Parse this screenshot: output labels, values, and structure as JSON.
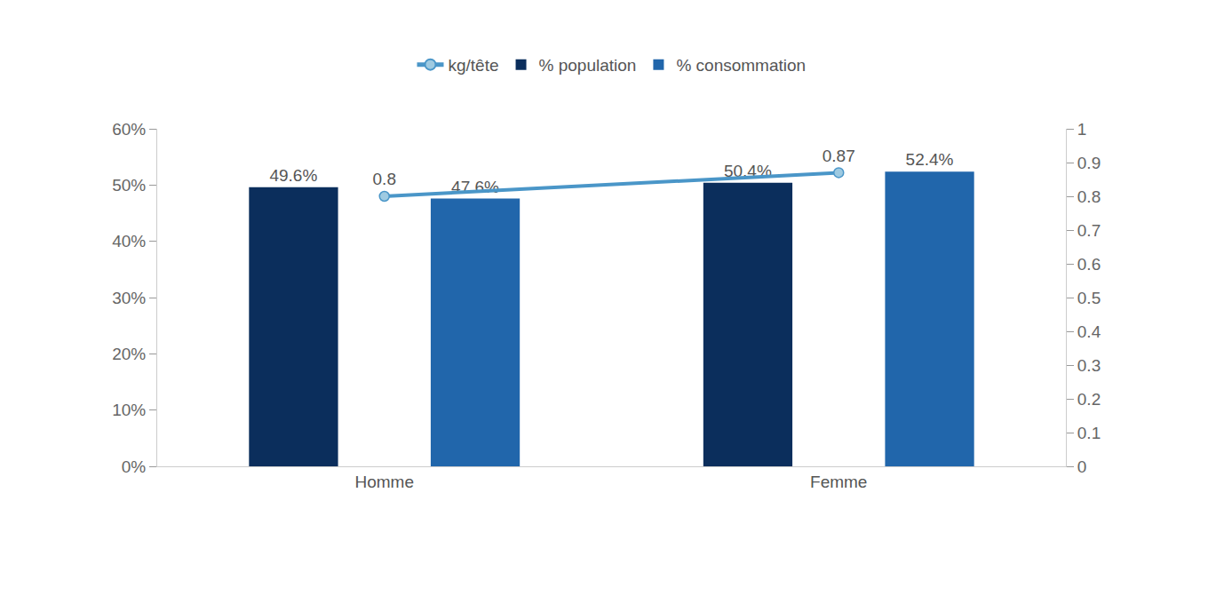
{
  "chart_data": {
    "type": "bar",
    "categories": [
      "Homme",
      "Femme"
    ],
    "series": [
      {
        "name": "kg/tête",
        "type": "line",
        "axis": "y2",
        "color": "#4a96c8",
        "marker": "circle",
        "values": [
          0.8,
          0.87
        ]
      },
      {
        "name": "% population",
        "color": "#0b2e5c",
        "values": [
          49.6,
          50.4
        ],
        "value_labels": [
          "49.6%",
          "50.4%"
        ]
      },
      {
        "name": "% consommation",
        "color": "#2166ab",
        "values": [
          47.6,
          52.4
        ],
        "value_labels": [
          "47.6%",
          "52.4%"
        ]
      }
    ],
    "ylim": [
      0,
      60
    ],
    "yticks": [
      {
        "value": 0,
        "label": "0%"
      },
      {
        "value": 10,
        "label": "10%"
      },
      {
        "value": 20,
        "label": "20%"
      },
      {
        "value": 30,
        "label": "30%"
      },
      {
        "value": 40,
        "label": "40%"
      },
      {
        "value": 50,
        "label": "50%"
      },
      {
        "value": 60,
        "label": "60%"
      }
    ],
    "y2lim": [
      0,
      1
    ],
    "y2ticks": [
      0,
      0.1,
      0.2,
      0.3,
      0.4,
      0.5,
      0.6,
      0.7,
      0.8,
      0.9,
      1
    ],
    "grid": false,
    "legend": "top",
    "data_labels": true
  }
}
